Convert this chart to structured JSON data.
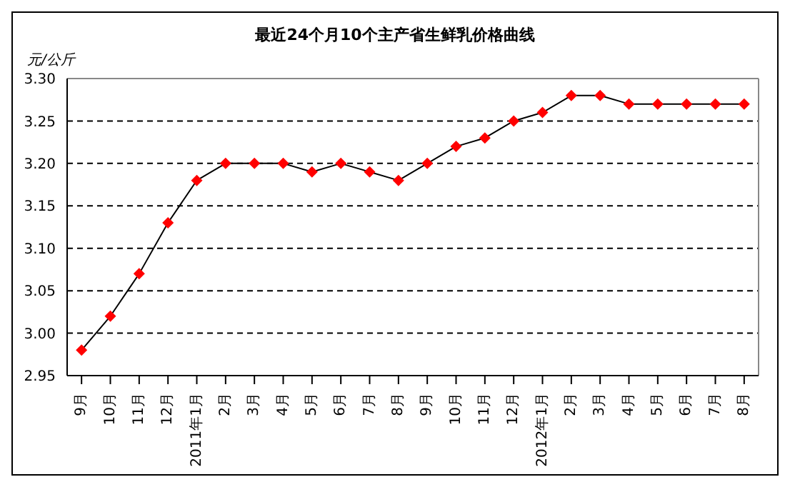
{
  "chart_data": {
    "type": "line",
    "title": "最近24个月10个主产省生鲜乳价格曲线",
    "ylabel": "元/公斤",
    "categories": [
      "9月",
      "10月",
      "11月",
      "12月",
      "2011年1月",
      "2月",
      "3月",
      "4月",
      "5月",
      "6月",
      "7月",
      "8月",
      "9月",
      "10月",
      "11月",
      "12月",
      "2012年1月",
      "2月",
      "3月",
      "4月",
      "5月",
      "6月",
      "7月",
      "8月"
    ],
    "series": [
      {
        "color": "#ff0000",
        "values": [
          2.98,
          3.02,
          3.07,
          3.13,
          3.18,
          3.2,
          3.2,
          3.2,
          3.19,
          3.2,
          3.19,
          3.18,
          3.2,
          3.22,
          3.23,
          3.25,
          3.26,
          3.28,
          3.28,
          3.27,
          3.27,
          3.27,
          3.27,
          3.27
        ]
      }
    ],
    "ylim": [
      2.95,
      3.3
    ],
    "yticks": [
      {
        "value": 2.95,
        "label": "2.95"
      },
      {
        "value": 3.0,
        "label": "3.00"
      },
      {
        "value": 3.05,
        "label": "3.05"
      },
      {
        "value": 3.1,
        "label": "3.10"
      },
      {
        "value": 3.15,
        "label": "3.15"
      },
      {
        "value": 3.2,
        "label": "3.20"
      },
      {
        "value": 3.25,
        "label": "3.25"
      },
      {
        "value": 3.3,
        "label": "3.30"
      }
    ],
    "grid": "y",
    "marker": "diamond",
    "line_style": "solid"
  }
}
